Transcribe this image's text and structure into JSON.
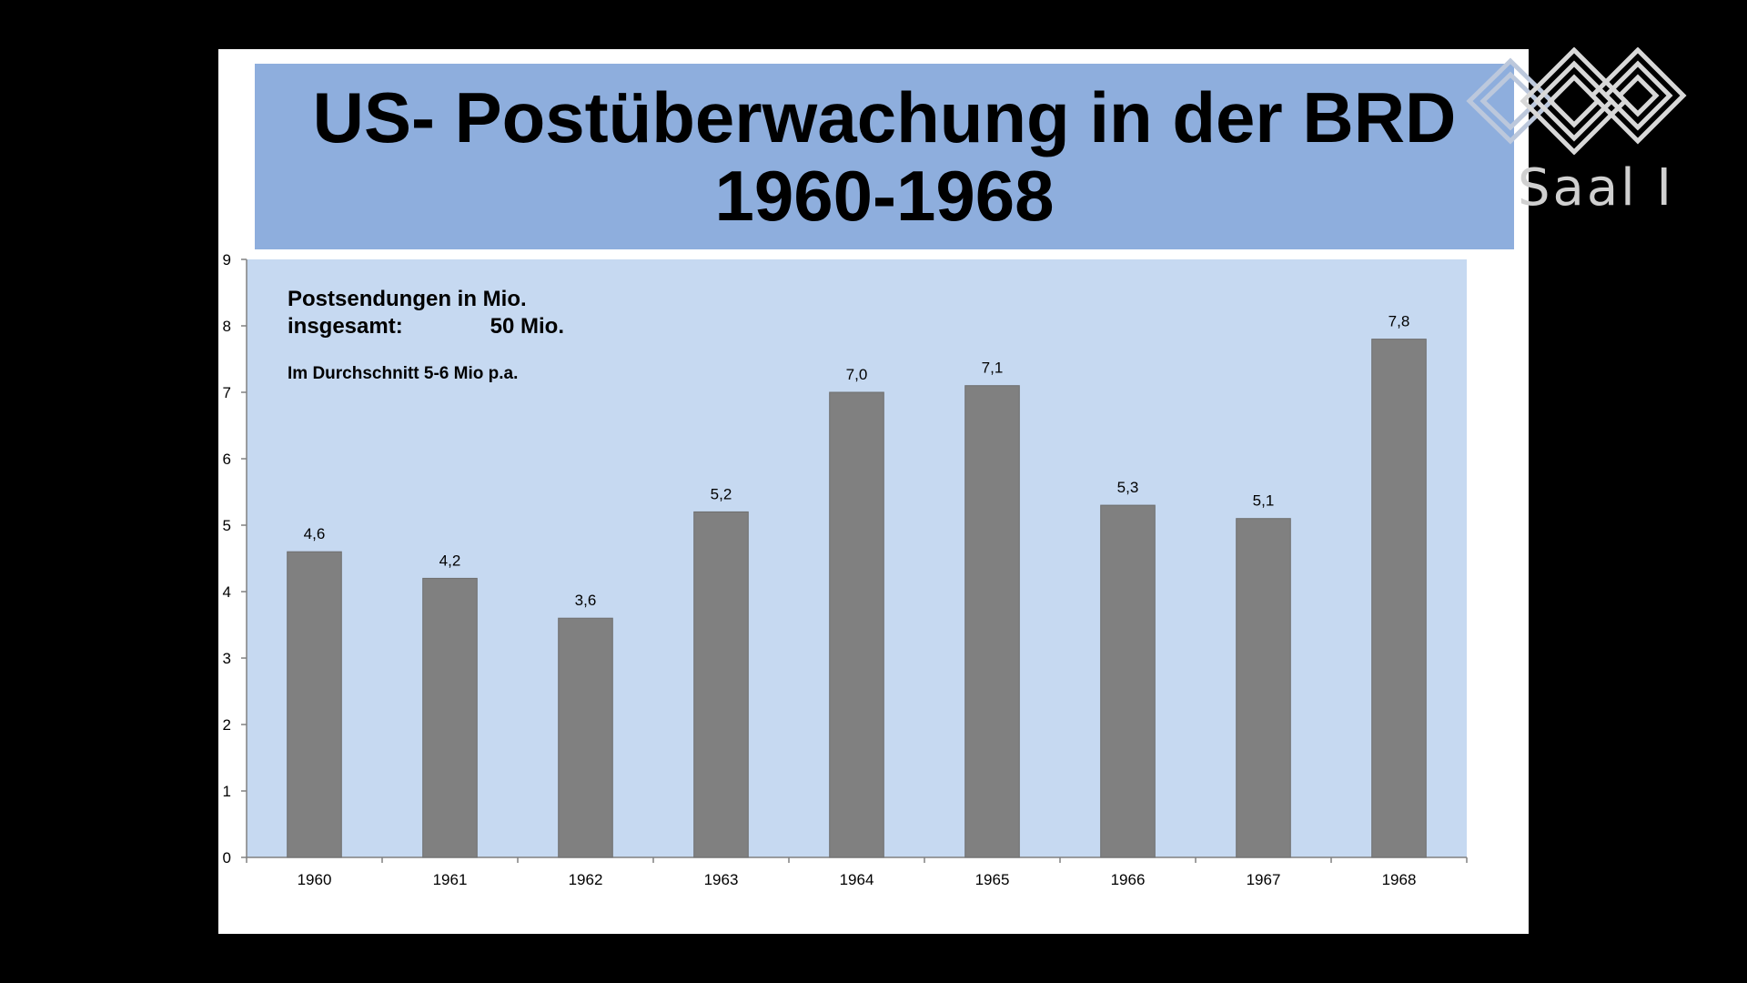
{
  "slide": {
    "title_line1": "US- Postüberwachung in der BRD",
    "title_line2": "1960-1968"
  },
  "logo": {
    "icon": "diamond-pattern-logo-icon",
    "text": "Saal I"
  },
  "colors": {
    "background": "#000000",
    "slide": "#ffffff",
    "title_box": "#8eaedd",
    "plot_area": "#c6d9f1",
    "bar": "#808080"
  },
  "chart_data": {
    "type": "bar",
    "title": "",
    "xlabel": "",
    "ylabel": "",
    "categories": [
      "1960",
      "1961",
      "1962",
      "1963",
      "1964",
      "1965",
      "1966",
      "1967",
      "1968"
    ],
    "values": [
      4.6,
      4.2,
      3.6,
      5.2,
      7.0,
      7.1,
      5.3,
      5.1,
      7.8
    ],
    "data_labels": [
      "4,6",
      "4,2",
      "3,6",
      "5,2",
      "7,0",
      "7,1",
      "5,3",
      "5,1",
      "7,8"
    ],
    "ylim": [
      0,
      9
    ],
    "yticks": [
      0,
      1,
      2,
      3,
      4,
      5,
      6,
      7,
      8,
      9
    ],
    "grid": false,
    "annotations": {
      "line1": "Postsendungen in Mio.",
      "line2_label": "insgesamt:",
      "line2_value": "50 Mio.",
      "line3": "Im Durchschnitt  5-6 Mio  p.a."
    }
  }
}
